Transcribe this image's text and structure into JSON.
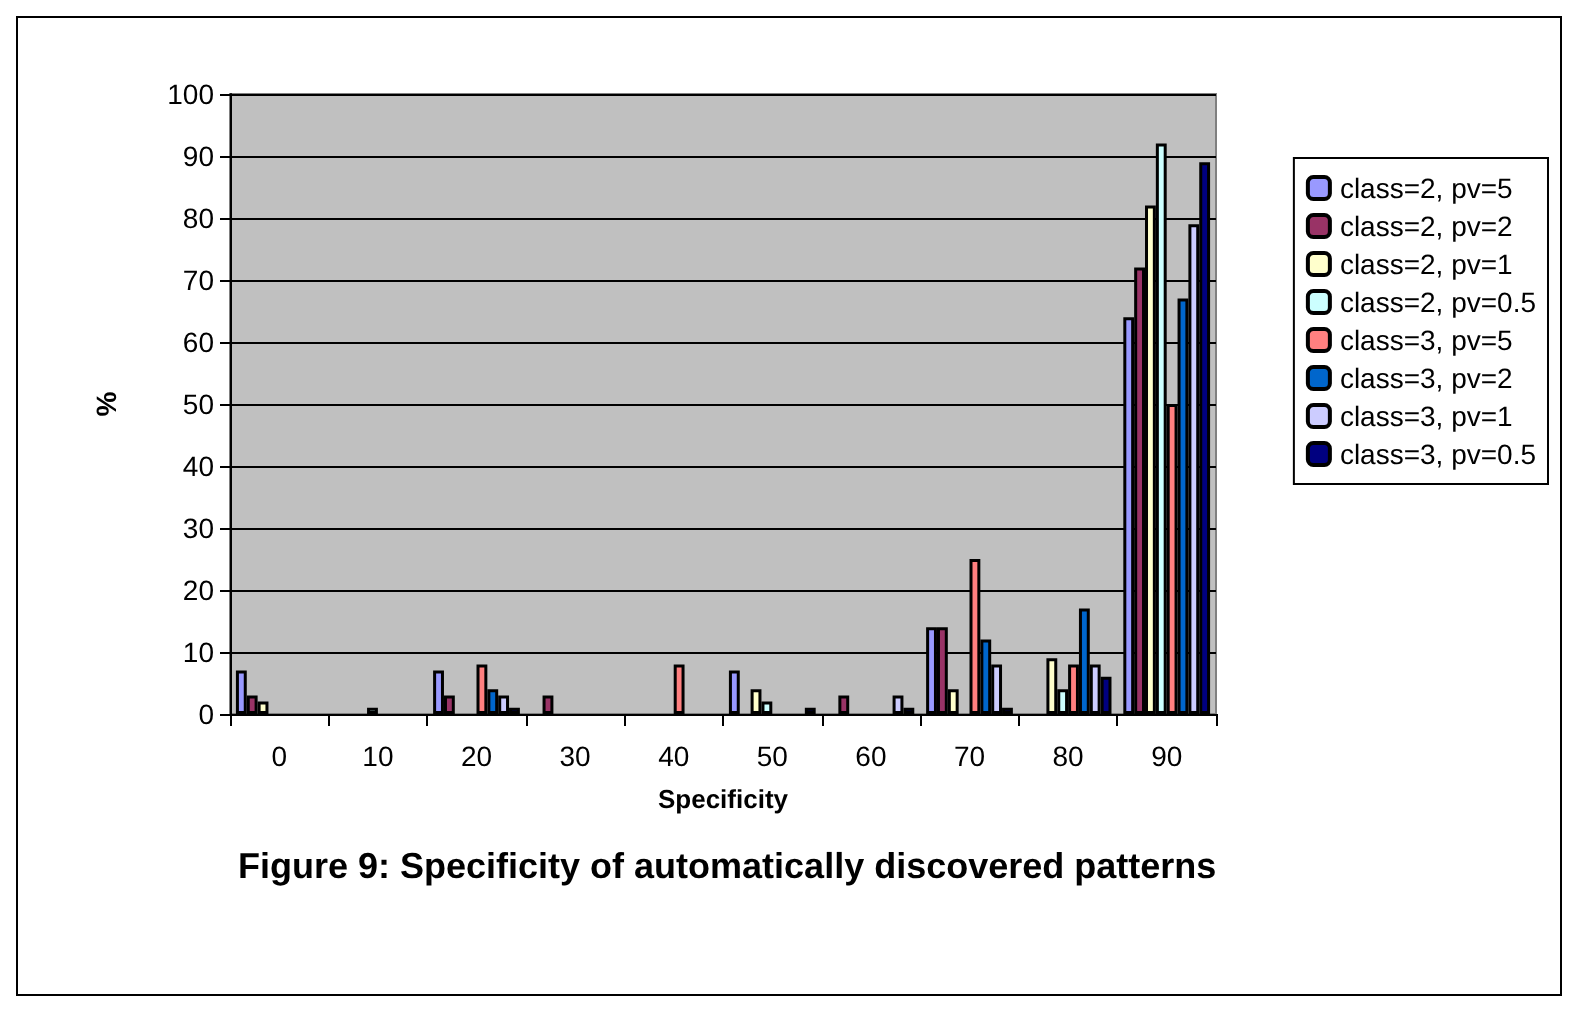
{
  "chart_data": {
    "type": "bar",
    "title": "Figure 9: Specificity of automatically discovered patterns",
    "xlabel": "Specificity",
    "ylabel": "%",
    "categories": [
      "0",
      "10",
      "20",
      "30",
      "40",
      "50",
      "60",
      "70",
      "80",
      "90"
    ],
    "series": [
      {
        "name": "class=2, pv=5",
        "color": "#9999ff",
        "values": [
          7,
          0,
          7,
          0,
          0,
          7,
          0,
          14,
          0,
          64
        ]
      },
      {
        "name": "class=2, pv=2",
        "color": "#993366",
        "values": [
          3,
          0,
          3,
          3,
          0,
          0,
          3,
          14,
          0,
          72
        ]
      },
      {
        "name": "class=2, pv=1",
        "color": "#ffffcc",
        "values": [
          2,
          0,
          0,
          0,
          0,
          4,
          0,
          4,
          9,
          82
        ]
      },
      {
        "name": "class=2, pv=0.5",
        "color": "#ccffff",
        "values": [
          0,
          1,
          0,
          0,
          0,
          2,
          0,
          0,
          4,
          92
        ]
      },
      {
        "name": "class=3, pv=5",
        "color": "#ff8080",
        "values": [
          0,
          0,
          8,
          0,
          8,
          0,
          0,
          25,
          8,
          50
        ]
      },
      {
        "name": "class=3, pv=2",
        "color": "#0066cc",
        "values": [
          0,
          0,
          4,
          0,
          0,
          0,
          0,
          12,
          17,
          67
        ]
      },
      {
        "name": "class=3, pv=1",
        "color": "#ccccff",
        "values": [
          0,
          0,
          3,
          0,
          0,
          0,
          3,
          8,
          8,
          79
        ]
      },
      {
        "name": "class=3, pv=0.5",
        "color": "#000080",
        "values": [
          0,
          0,
          1,
          0,
          0,
          1,
          1,
          1,
          6,
          89
        ]
      }
    ],
    "ylim": [
      0,
      100
    ],
    "yticks": [
      0,
      10,
      20,
      30,
      40,
      50,
      60,
      70,
      80,
      90,
      100
    ],
    "grid": "y",
    "legend": "right"
  }
}
